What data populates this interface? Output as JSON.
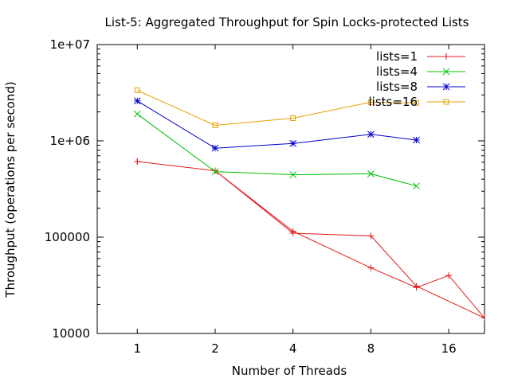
{
  "chart_data": {
    "type": "line",
    "title": "List-5: Aggregated Throughput for Spin Locks-protected Lists",
    "xlabel": "Number of Threads",
    "ylabel": "Throughput (operations per second)",
    "x_scale": "log2",
    "y_scale": "log10",
    "xlim": [
      0.7,
      22
    ],
    "ylim": [
      10000,
      10000000
    ],
    "x_ticks": [
      1,
      2,
      4,
      8,
      16
    ],
    "x_tick_labels": [
      "1",
      "2",
      "4",
      "8",
      "16"
    ],
    "y_ticks": [
      10000,
      100000,
      1000000,
      10000000
    ],
    "y_tick_labels": [
      "10000",
      "100000",
      "1e+06",
      "1e+07"
    ],
    "grid": false,
    "legend": {
      "placement": "top-right"
    },
    "series": [
      {
        "name": "lists=1",
        "color": "#e41a1c",
        "marker": "plus",
        "x": [
          1,
          2,
          4,
          8,
          12,
          22,
          16,
          12,
          8,
          4,
          2,
          1
        ],
        "y": [
          610000,
          490000,
          110000,
          103000,
          31000,
          14500,
          40000,
          30000,
          48000,
          115000,
          490000,
          610000
        ]
      },
      {
        "name": "lists=4",
        "color": "#00c000",
        "marker": "cross",
        "x": [
          1,
          2,
          4,
          8,
          12
        ],
        "y": [
          1900000,
          480000,
          445000,
          455000,
          340000
        ]
      },
      {
        "name": "lists=8",
        "color": "#0000cc",
        "marker": "star",
        "x": [
          1,
          2,
          4,
          8,
          12
        ],
        "y": [
          2600000,
          840000,
          940000,
          1170000,
          1020000
        ]
      },
      {
        "name": "lists=16",
        "color": "#e6a000",
        "marker": "square",
        "x": [
          1,
          2,
          4,
          8,
          12
        ],
        "y": [
          3350000,
          1450000,
          1720000,
          2520000,
          2480000
        ]
      }
    ]
  }
}
